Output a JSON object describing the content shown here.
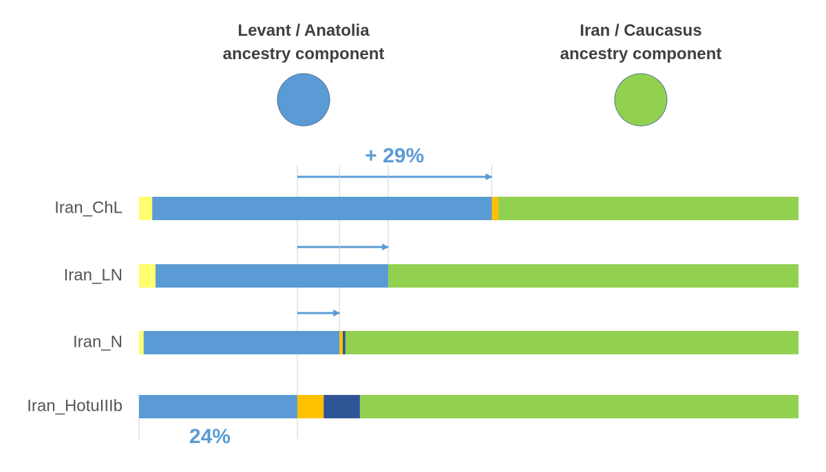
{
  "chart_data": {
    "type": "bar",
    "orientation": "horizontal",
    "stacked": true,
    "categories": [
      "Iran_ChL",
      "Iran_LN",
      "Iran_N",
      "Iran_HotuIIIb"
    ],
    "xlim": [
      0,
      100
    ],
    "series": [
      {
        "color": "#fefe6e",
        "values": [
          2,
          2.5,
          0.7,
          0
        ]
      },
      {
        "name": "Levant / Anatolia ancestry component",
        "color": "#5b9bd5",
        "values": [
          51.5,
          35.3,
          29.7,
          24
        ]
      },
      {
        "color": "#ffc000",
        "values": [
          1,
          0,
          0.5,
          4
        ]
      },
      {
        "color": "#2f5597",
        "values": [
          0,
          0,
          0.4,
          5.5
        ]
      },
      {
        "name": "Iran / Caucasus ancestry component",
        "color": "#92d050",
        "values": [
          45.5,
          62.2,
          68.7,
          66.5
        ]
      }
    ],
    "annotations": [
      {
        "text": "+ 29%",
        "color": "#5b9bd5"
      },
      {
        "text": "24%",
        "color": "#5b9bd5"
      }
    ]
  }
}
